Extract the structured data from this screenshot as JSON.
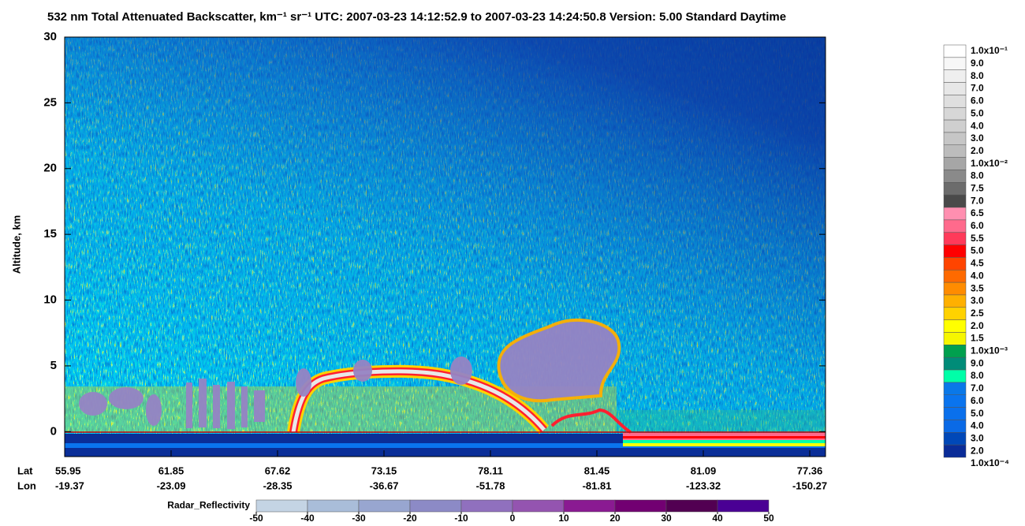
{
  "chart_data": {
    "type": "curtain",
    "title": "532 nm Total Attenuated Backscatter, km⁻¹ sr⁻¹    UTC:  2007-03-23 14:12:52.9  to  2007-03-23 14:24:50.8    Version: 5.00  Standard  Daytime",
    "ylabel": "Altitude, km",
    "ylim": [
      -1.9,
      30
    ],
    "yticks": [
      0,
      5,
      10,
      15,
      20,
      25,
      30
    ],
    "lat_label": "Lat",
    "lon_label": "Lon",
    "lat": [
      55.95,
      61.85,
      67.62,
      73.15,
      78.11,
      81.45,
      81.09,
      77.36
    ],
    "lon": [
      -19.37,
      -23.09,
      -28.35,
      -36.67,
      -51.78,
      -81.81,
      -123.32,
      -150.27
    ],
    "colorbar": {
      "labels": [
        "1.0x10⁻¹",
        "9.0",
        "8.0",
        "7.0",
        "6.0",
        "5.0",
        "4.0",
        "3.0",
        "2.0",
        "1.0x10⁻²",
        "8.0",
        "7.5",
        "7.0",
        "6.5",
        "6.0",
        "5.5",
        "5.0",
        "4.5",
        "4.0",
        "3.5",
        "3.0",
        "2.5",
        "2.0",
        "1.5",
        "1.0x10⁻³",
        "9.0",
        "8.0",
        "7.0",
        "6.0",
        "5.0",
        "4.0",
        "3.0",
        "2.0",
        "1.0x10⁻⁴"
      ],
      "colors": [
        "#ffffff",
        "#f7f7f7",
        "#efefef",
        "#e7e7e7",
        "#dfdfdf",
        "#d7d7d7",
        "#cfcfcf",
        "#c6c6c6",
        "#bcbcbc",
        "#a6a6a6",
        "#8a8a8a",
        "#6c6c6c",
        "#4a4a4a",
        "#ff8fb0",
        "#ff6a8c",
        "#ff3a5a",
        "#ff0000",
        "#ff4400",
        "#ff6a00",
        "#ff8c00",
        "#ffb000",
        "#ffd200",
        "#ffff00",
        "#f6f600",
        "#00a04e",
        "#008c78",
        "#00ffa8",
        "#0a78e8",
        "#0a74ee",
        "#0a70ec",
        "#0a6ae6",
        "#0048b8",
        "#0a2c98"
      ]
    },
    "radar": {
      "label": "Radar_Reflectivity",
      "ticks": [
        -50,
        -40,
        -30,
        -20,
        -10,
        0,
        10,
        20,
        30,
        40,
        50
      ],
      "colors": [
        "#c4d4e4",
        "#a9bdd9",
        "#98a6d0",
        "#8c8ac6",
        "#9070be",
        "#9454b0",
        "#8a1a92",
        "#720072",
        "#520052",
        "#4a0094"
      ]
    }
  }
}
